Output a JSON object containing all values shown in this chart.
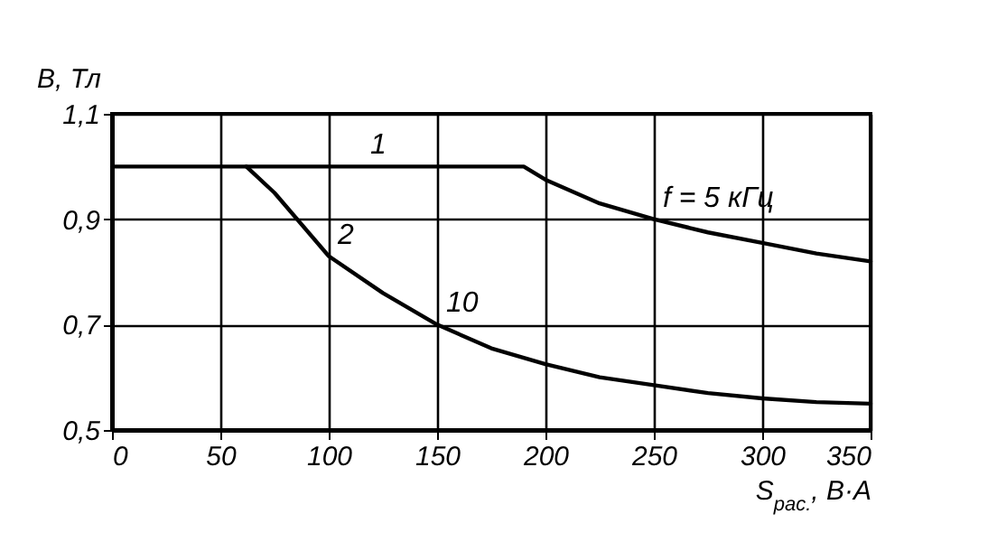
{
  "chart_data": {
    "type": "line",
    "xlabel": "S$_{рас.}$, В·А",
    "ylabel": "B, Тл",
    "series": [
      {
        "color": "#000000",
        "x": [
          0,
          62,
          100,
          115,
          150,
          190,
          200,
          225,
          250,
          275,
          300,
          325,
          350
        ],
        "values": [
          1.0,
          1.0,
          1.0,
          1.0,
          1.0,
          1.0,
          0.975,
          0.93,
          0.9,
          0.875,
          0.855,
          0.835,
          0.82
        ]
      },
      {
        "color": "#000000",
        "x": [
          62,
          75,
          100,
          125,
          150,
          175,
          200,
          225,
          250,
          275,
          300,
          325,
          350
        ],
        "values": [
          1.0,
          0.95,
          0.83,
          0.76,
          0.7,
          0.655,
          0.625,
          0.6,
          0.585,
          0.57,
          0.56,
          0.553,
          0.55
        ]
      }
    ],
    "xlim": [
      0,
      350
    ],
    "xticks": [
      0,
      50,
      100,
      150,
      200,
      250,
      300,
      350
    ],
    "ylim": [
      0.5,
      1.1
    ],
    "yticks": [
      {
        "value": 0.5,
        "label": "0,5"
      },
      {
        "value": 0.7,
        "label": "0,7"
      },
      {
        "value": 0.9,
        "label": "0,9"
      },
      {
        "value": 1.1,
        "label": "1,1"
      }
    ],
    "grid": true,
    "line_style": "solid",
    "marker": "none",
    "annotations": [
      {
        "text": "1",
        "x": 115,
        "y": 1.0
      },
      {
        "text": "2",
        "x": 100,
        "y": 0.83
      },
      {
        "text": "10",
        "x": 150,
        "y": 0.7
      },
      {
        "text": "f = 5 кГц",
        "x": 250,
        "y": 0.9
      }
    ]
  }
}
